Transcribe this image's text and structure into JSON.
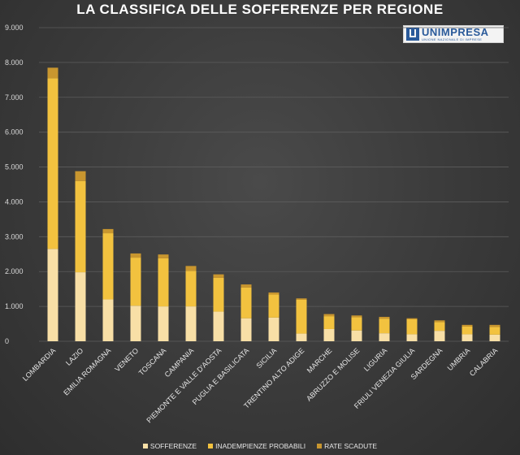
{
  "chart_data": {
    "type": "bar",
    "stacked": true,
    "title": "LA CLASSIFICA DELLE SOFFERENZE PER REGIONE",
    "xlabel": "",
    "ylabel": "",
    "ylim": [
      0,
      9000
    ],
    "yticks": [
      0,
      1000,
      2000,
      3000,
      4000,
      5000,
      6000,
      7000,
      8000,
      9000
    ],
    "ytick_labels": [
      "0",
      "1.000",
      "2.000",
      "3.000",
      "4.000",
      "5.000",
      "6.000",
      "7.000",
      "8.000",
      "9.000"
    ],
    "grid": true,
    "legend_position": "bottom",
    "categories": [
      "LOMBARDIA",
      "LAZIO",
      "EMILIA ROMAGNA",
      "VENETO",
      "TOSCANA",
      "CAMPANIA",
      "PIEMONTE E VALLE D'AOSTA",
      "PUGLIA E BASILICATA",
      "SICILIA",
      "TRENTINO ALTO ADIGE",
      "MARCHE",
      "ABRUZZO E MOLISE",
      "LIGURIA",
      "FRIULI VENEZIA GIULIA",
      "SARDEGNA",
      "UMBRIA",
      "CALABRIA"
    ],
    "series": [
      {
        "name": "SOFFERENZE",
        "color": "#f8dfa6",
        "values": [
          2650,
          1980,
          1200,
          1020,
          1000,
          1000,
          850,
          660,
          680,
          220,
          350,
          310,
          230,
          200,
          300,
          200,
          190
        ]
      },
      {
        "name": "INADEMPIENZE PROBABILI",
        "color": "#f2c23f",
        "values": [
          4900,
          2620,
          1900,
          1380,
          1380,
          1020,
          970,
          880,
          660,
          970,
          370,
          380,
          420,
          430,
          250,
          220,
          220
        ]
      },
      {
        "name": "RATE SCADUTE",
        "color": "#c8962f",
        "values": [
          300,
          280,
          120,
          120,
          110,
          140,
          100,
          90,
          60,
          40,
          60,
          50,
          50,
          30,
          50,
          50,
          60
        ]
      }
    ]
  },
  "logo": {
    "name": "UNIMPRESA",
    "subtitle": "UNIONE NAZIONALE DI IMPRESE"
  }
}
